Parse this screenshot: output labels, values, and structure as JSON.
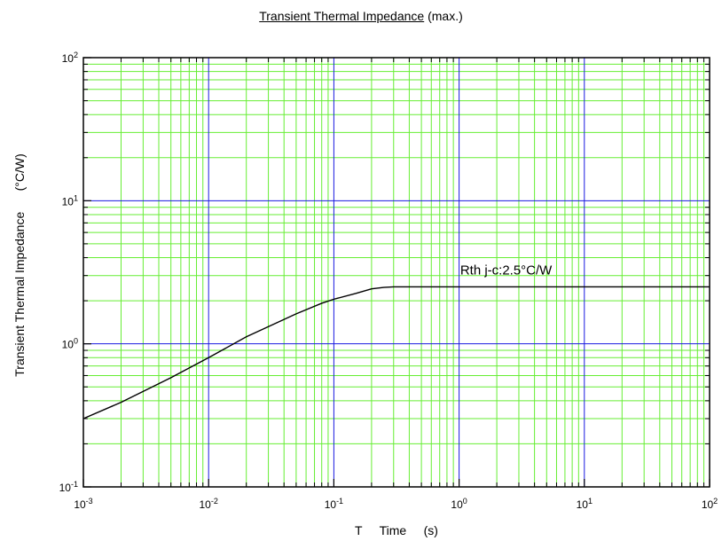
{
  "chart_data": {
    "type": "line",
    "title": "Transient Thermal Impedance",
    "title_suffix": "(max.)",
    "xlabel_prefix": "T",
    "xlabel": "Time",
    "xlabel_unit": "(s)",
    "ylabel": "Transient Thermal Impedance",
    "ylabel_unit": "(°C/W)",
    "x_scale": "log",
    "y_scale": "log",
    "xlim": [
      0.001,
      100
    ],
    "ylim": [
      0.1,
      100
    ],
    "grid": true,
    "x_ticks": [
      {
        "value": 0.001,
        "mantissa": "10",
        "exp": "-3"
      },
      {
        "value": 0.01,
        "mantissa": "10",
        "exp": "-2"
      },
      {
        "value": 0.1,
        "mantissa": "10",
        "exp": "-1"
      },
      {
        "value": 1,
        "mantissa": "10",
        "exp": "0"
      },
      {
        "value": 10,
        "mantissa": "10",
        "exp": "1"
      },
      {
        "value": 100,
        "mantissa": "10",
        "exp": "2"
      }
    ],
    "y_ticks": [
      {
        "value": 0.1,
        "mantissa": "10",
        "exp": "-1"
      },
      {
        "value": 1,
        "mantissa": "10",
        "exp": "0"
      },
      {
        "value": 10,
        "mantissa": "10",
        "exp": "1"
      },
      {
        "value": 100,
        "mantissa": "10",
        "exp": "2"
      }
    ],
    "series": [
      {
        "x": [
          0.001,
          0.002,
          0.005,
          0.01,
          0.02,
          0.05,
          0.08,
          0.1,
          0.15,
          0.2,
          0.25,
          0.3,
          1,
          10,
          100
        ],
        "y": [
          0.3,
          0.39,
          0.58,
          0.8,
          1.12,
          1.62,
          1.92,
          2.05,
          2.25,
          2.42,
          2.48,
          2.5,
          2.5,
          2.5,
          2.5
        ]
      }
    ],
    "annotations": [
      {
        "text": "Rth j-c:2.5°C/W",
        "x": 1.02,
        "y": 3.05
      }
    ],
    "colors": {
      "major_grid": "#1a1ae0",
      "minor_grid": "#66ee33",
      "curve": "#000000",
      "frame": "#000000"
    }
  }
}
